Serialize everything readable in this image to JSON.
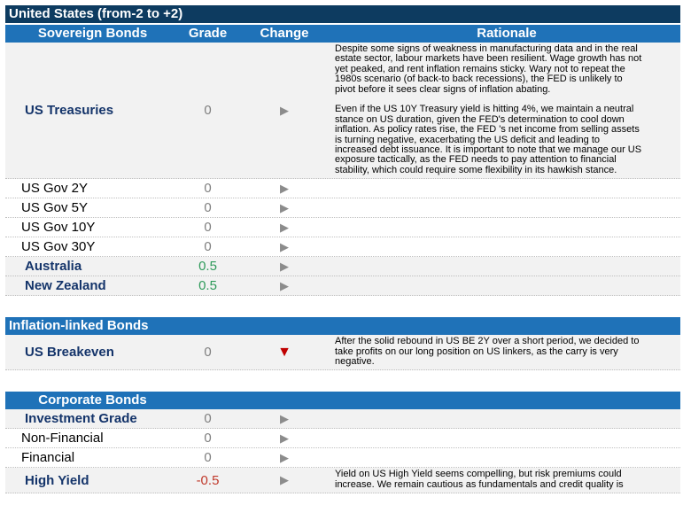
{
  "title": "United States (from-2 to +2)",
  "sections": [
    {
      "header": [
        "Sovereign Bonds",
        "Grade",
        "Change",
        "Rationale"
      ],
      "rows": [
        {
          "name": "US Treasuries",
          "emphasis": true,
          "grade": "0",
          "change": "▶",
          "rationale": [
            [
              "Despite some signs of weakness in manufacturing data and in the real",
              "estate sector, labour markets have been resilient. Wage growth has not",
              "yet peaked, and rent inflation remains sticky. Wary not to repeat the",
              "1980s scenario (of back-to back recessions), the FED is unlikely to",
              "pivot before it sees clear signs of inflation abating."
            ],
            [
              "Even if the US 10Y Treasury yield is hitting 4%, we maintain a neutral",
              "stance on US duration, given the FED's determination to cool down",
              "inflation. As policy rates rise, the FED 's net income from selling assets",
              "is turning negative, exacerbating the US deficit and leading to",
              "increased debt issuance. It is important to note that we manage our US",
              "exposure tactically, as the FED needs to pay attention to financial",
              "stability, which could require some flexibility in its hawkish stance."
            ]
          ]
        },
        {
          "name": "US Gov 2Y",
          "emphasis": false,
          "grade": "0",
          "change": "▶"
        },
        {
          "name": "US Gov 5Y",
          "emphasis": false,
          "grade": "0",
          "change": "▶"
        },
        {
          "name": "US Gov 10Y",
          "emphasis": false,
          "grade": "0",
          "change": "▶"
        },
        {
          "name": "US Gov 30Y",
          "emphasis": false,
          "grade": "0",
          "change": "▶"
        },
        {
          "name": "Australia",
          "emphasis": true,
          "grade": "0.5",
          "grade_color": "#2e9a5a",
          "change": "▶"
        },
        {
          "name": "New Zealand",
          "emphasis": true,
          "grade": "0.5",
          "grade_color": "#2e9a5a",
          "change": "▶"
        }
      ]
    },
    {
      "header": [
        "Inflation-linked Bonds"
      ],
      "rows": [
        {
          "name": "US Breakeven",
          "emphasis": true,
          "grade": "0",
          "change": "▼",
          "change_color": "#c00000",
          "rationale": [
            [
              "After the solid rebound in US BE 2Y over a short period, we decided to",
              "take profits on our long position on US linkers, as the carry is very",
              "negative."
            ]
          ]
        }
      ]
    },
    {
      "header": [
        "Corporate Bonds"
      ],
      "rows": [
        {
          "name": "Investment Grade",
          "emphasis": true,
          "grade": "0",
          "change": "▶"
        },
        {
          "name": "Non-Financial",
          "emphasis": false,
          "grade": "0",
          "change": "▶"
        },
        {
          "name": "Financial",
          "emphasis": false,
          "grade": "0",
          "change": "▶"
        },
        {
          "name": "High Yield",
          "emphasis": true,
          "grade": "-0.5",
          "grade_color": "#c0392b",
          "change": "▶",
          "rationale": [
            [
              "Yield on US High Yield seems compelling, but risk premiums could",
              "increase. We remain cautious as fundamentals and credit quality is"
            ]
          ]
        }
      ]
    }
  ]
}
